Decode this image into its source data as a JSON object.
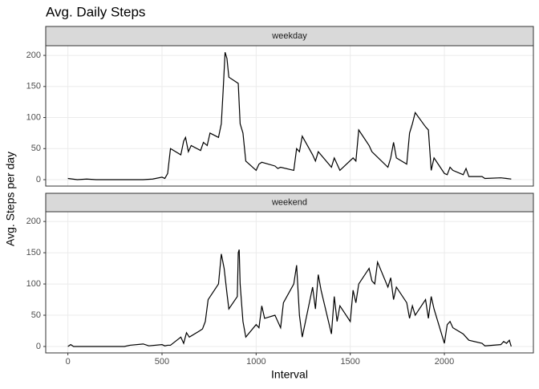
{
  "chart_data": {
    "type": "line",
    "title": "Avg. Daily Steps",
    "x_label": "Interval",
    "y_label": "Avg. Steps per day",
    "xlim": [
      -117.75,
      2472.75
    ],
    "xticks": [
      0,
      500,
      1000,
      1500,
      2000
    ],
    "ylim": [
      -10.3,
      215.6
    ],
    "yticks": [
      0,
      50,
      100,
      150,
      200
    ],
    "grid": true,
    "series": [
      {
        "name": "weekday",
        "color": "#000000",
        "x": [
          0,
          50,
          100,
          150,
          200,
          300,
          400,
          450,
          500,
          515,
          530,
          545,
          600,
          615,
          625,
          640,
          655,
          705,
          720,
          740,
          755,
          800,
          815,
          825,
          835,
          845,
          855,
          905,
          915,
          930,
          945,
          1000,
          1015,
          1030,
          1100,
          1115,
          1130,
          1200,
          1215,
          1230,
          1245,
          1300,
          1315,
          1330,
          1400,
          1415,
          1445,
          1515,
          1530,
          1545,
          1600,
          1615,
          1700,
          1715,
          1730,
          1745,
          1800,
          1815,
          1830,
          1845,
          1900,
          1915,
          1930,
          1945,
          2000,
          2015,
          2030,
          2045,
          2100,
          2115,
          2130,
          2200,
          2215,
          2300,
          2330,
          2355
        ],
        "values": [
          2,
          0,
          1,
          0,
          0,
          0,
          0,
          1,
          4,
          2,
          10,
          50,
          40,
          62,
          68,
          45,
          55,
          47,
          60,
          55,
          75,
          68,
          90,
          145,
          205,
          195,
          165,
          155,
          90,
          75,
          30,
          15,
          25,
          28,
          22,
          18,
          20,
          15,
          50,
          45,
          70,
          40,
          30,
          45,
          20,
          35,
          15,
          35,
          30,
          80,
          55,
          45,
          20,
          35,
          60,
          35,
          25,
          75,
          90,
          108,
          85,
          80,
          15,
          35,
          10,
          8,
          20,
          15,
          8,
          18,
          5,
          5,
          2,
          3,
          2,
          1
        ]
      },
      {
        "name": "weekend",
        "color": "#000000",
        "x": [
          0,
          15,
          30,
          100,
          150,
          200,
          300,
          330,
          400,
          430,
          500,
          515,
          530,
          545,
          600,
          615,
          630,
          645,
          700,
          715,
          730,
          745,
          800,
          815,
          830,
          845,
          855,
          900,
          905,
          910,
          915,
          930,
          945,
          1000,
          1015,
          1030,
          1045,
          1100,
          1115,
          1130,
          1145,
          1200,
          1215,
          1230,
          1245,
          1300,
          1315,
          1330,
          1345,
          1400,
          1415,
          1430,
          1445,
          1500,
          1515,
          1530,
          1545,
          1600,
          1615,
          1630,
          1645,
          1700,
          1715,
          1730,
          1745,
          1800,
          1815,
          1830,
          1845,
          1900,
          1915,
          1930,
          1945,
          2000,
          2015,
          2030,
          2045,
          2100,
          2115,
          2130,
          2200,
          2215,
          2300,
          2315,
          2330,
          2345,
          2355
        ],
        "values": [
          0,
          3,
          0,
          0,
          0,
          0,
          0,
          2,
          4,
          1,
          3,
          1,
          2,
          2,
          15,
          5,
          22,
          15,
          25,
          28,
          40,
          75,
          100,
          148,
          125,
          85,
          60,
          80,
          150,
          155,
          100,
          40,
          15,
          35,
          30,
          65,
          45,
          50,
          40,
          30,
          70,
          100,
          130,
          50,
          15,
          95,
          60,
          115,
          90,
          20,
          80,
          40,
          65,
          40,
          90,
          70,
          100,
          125,
          105,
          100,
          135,
          95,
          110,
          75,
          95,
          70,
          45,
          65,
          50,
          75,
          45,
          80,
          60,
          5,
          35,
          40,
          30,
          20,
          15,
          10,
          5,
          1,
          3,
          8,
          5,
          10,
          0
        ]
      }
    ]
  }
}
